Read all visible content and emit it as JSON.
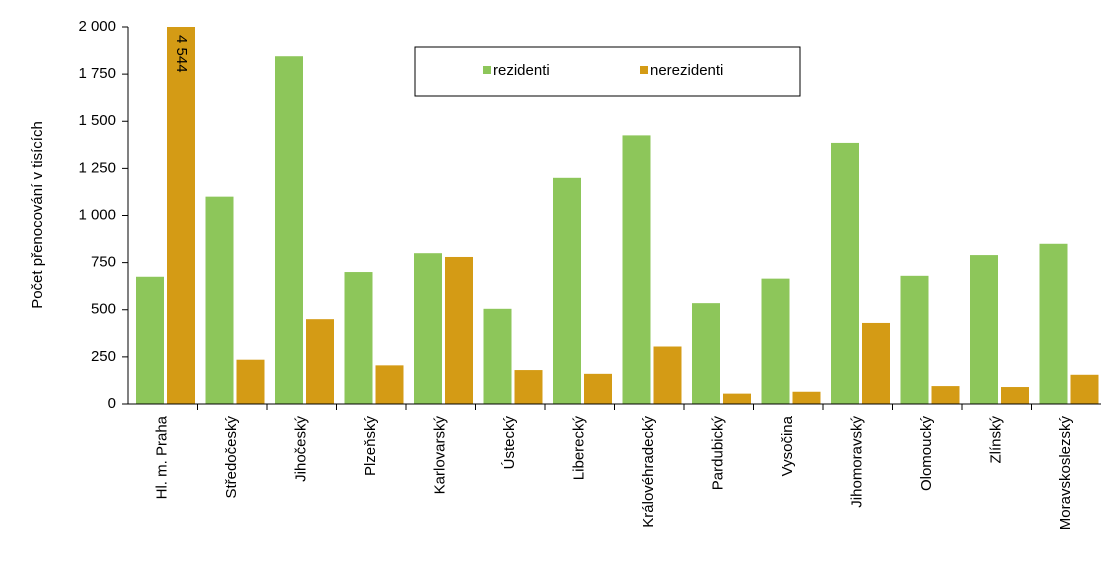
{
  "chart_data": {
    "type": "bar",
    "y_label": "Počet přenocování v tisících",
    "categories": [
      "Hl. m. Praha",
      "Středočeský",
      "Jihočeský",
      "Plzeňský",
      "Karlovarský",
      "Ústecký",
      "Liberecký",
      "Královéhradecký",
      "Pardubický",
      "Vysočina",
      "Jihomoravský",
      "Olomoucký",
      "Zlínský",
      "Moravskoslezský"
    ],
    "series": [
      {
        "name": "rezidenti",
        "color": "#8dc65a",
        "values": [
          675,
          1100,
          1845,
          700,
          800,
          505,
          1200,
          1425,
          535,
          665,
          1385,
          680,
          790,
          850
        ]
      },
      {
        "name": "nerezidenti",
        "color": "#d49b15",
        "values": [
          4544,
          235,
          450,
          205,
          780,
          180,
          160,
          305,
          55,
          65,
          430,
          95,
          90,
          155
        ],
        "value_labels": [
          "4 544",
          null,
          null,
          null,
          null,
          null,
          null,
          null,
          null,
          null,
          null,
          null,
          null,
          null
        ]
      }
    ],
    "ylim": [
      0,
      2000
    ],
    "yticks": [
      0,
      250,
      500,
      750,
      {
        "value": 1000,
        "label": "1 000"
      },
      {
        "value": 1250,
        "label": "1 250"
      },
      {
        "value": 1500,
        "label": "1 500"
      },
      {
        "value": 1750,
        "label": "1 750"
      },
      {
        "value": 2000,
        "label": "2 000"
      }
    ],
    "legend": "top"
  }
}
